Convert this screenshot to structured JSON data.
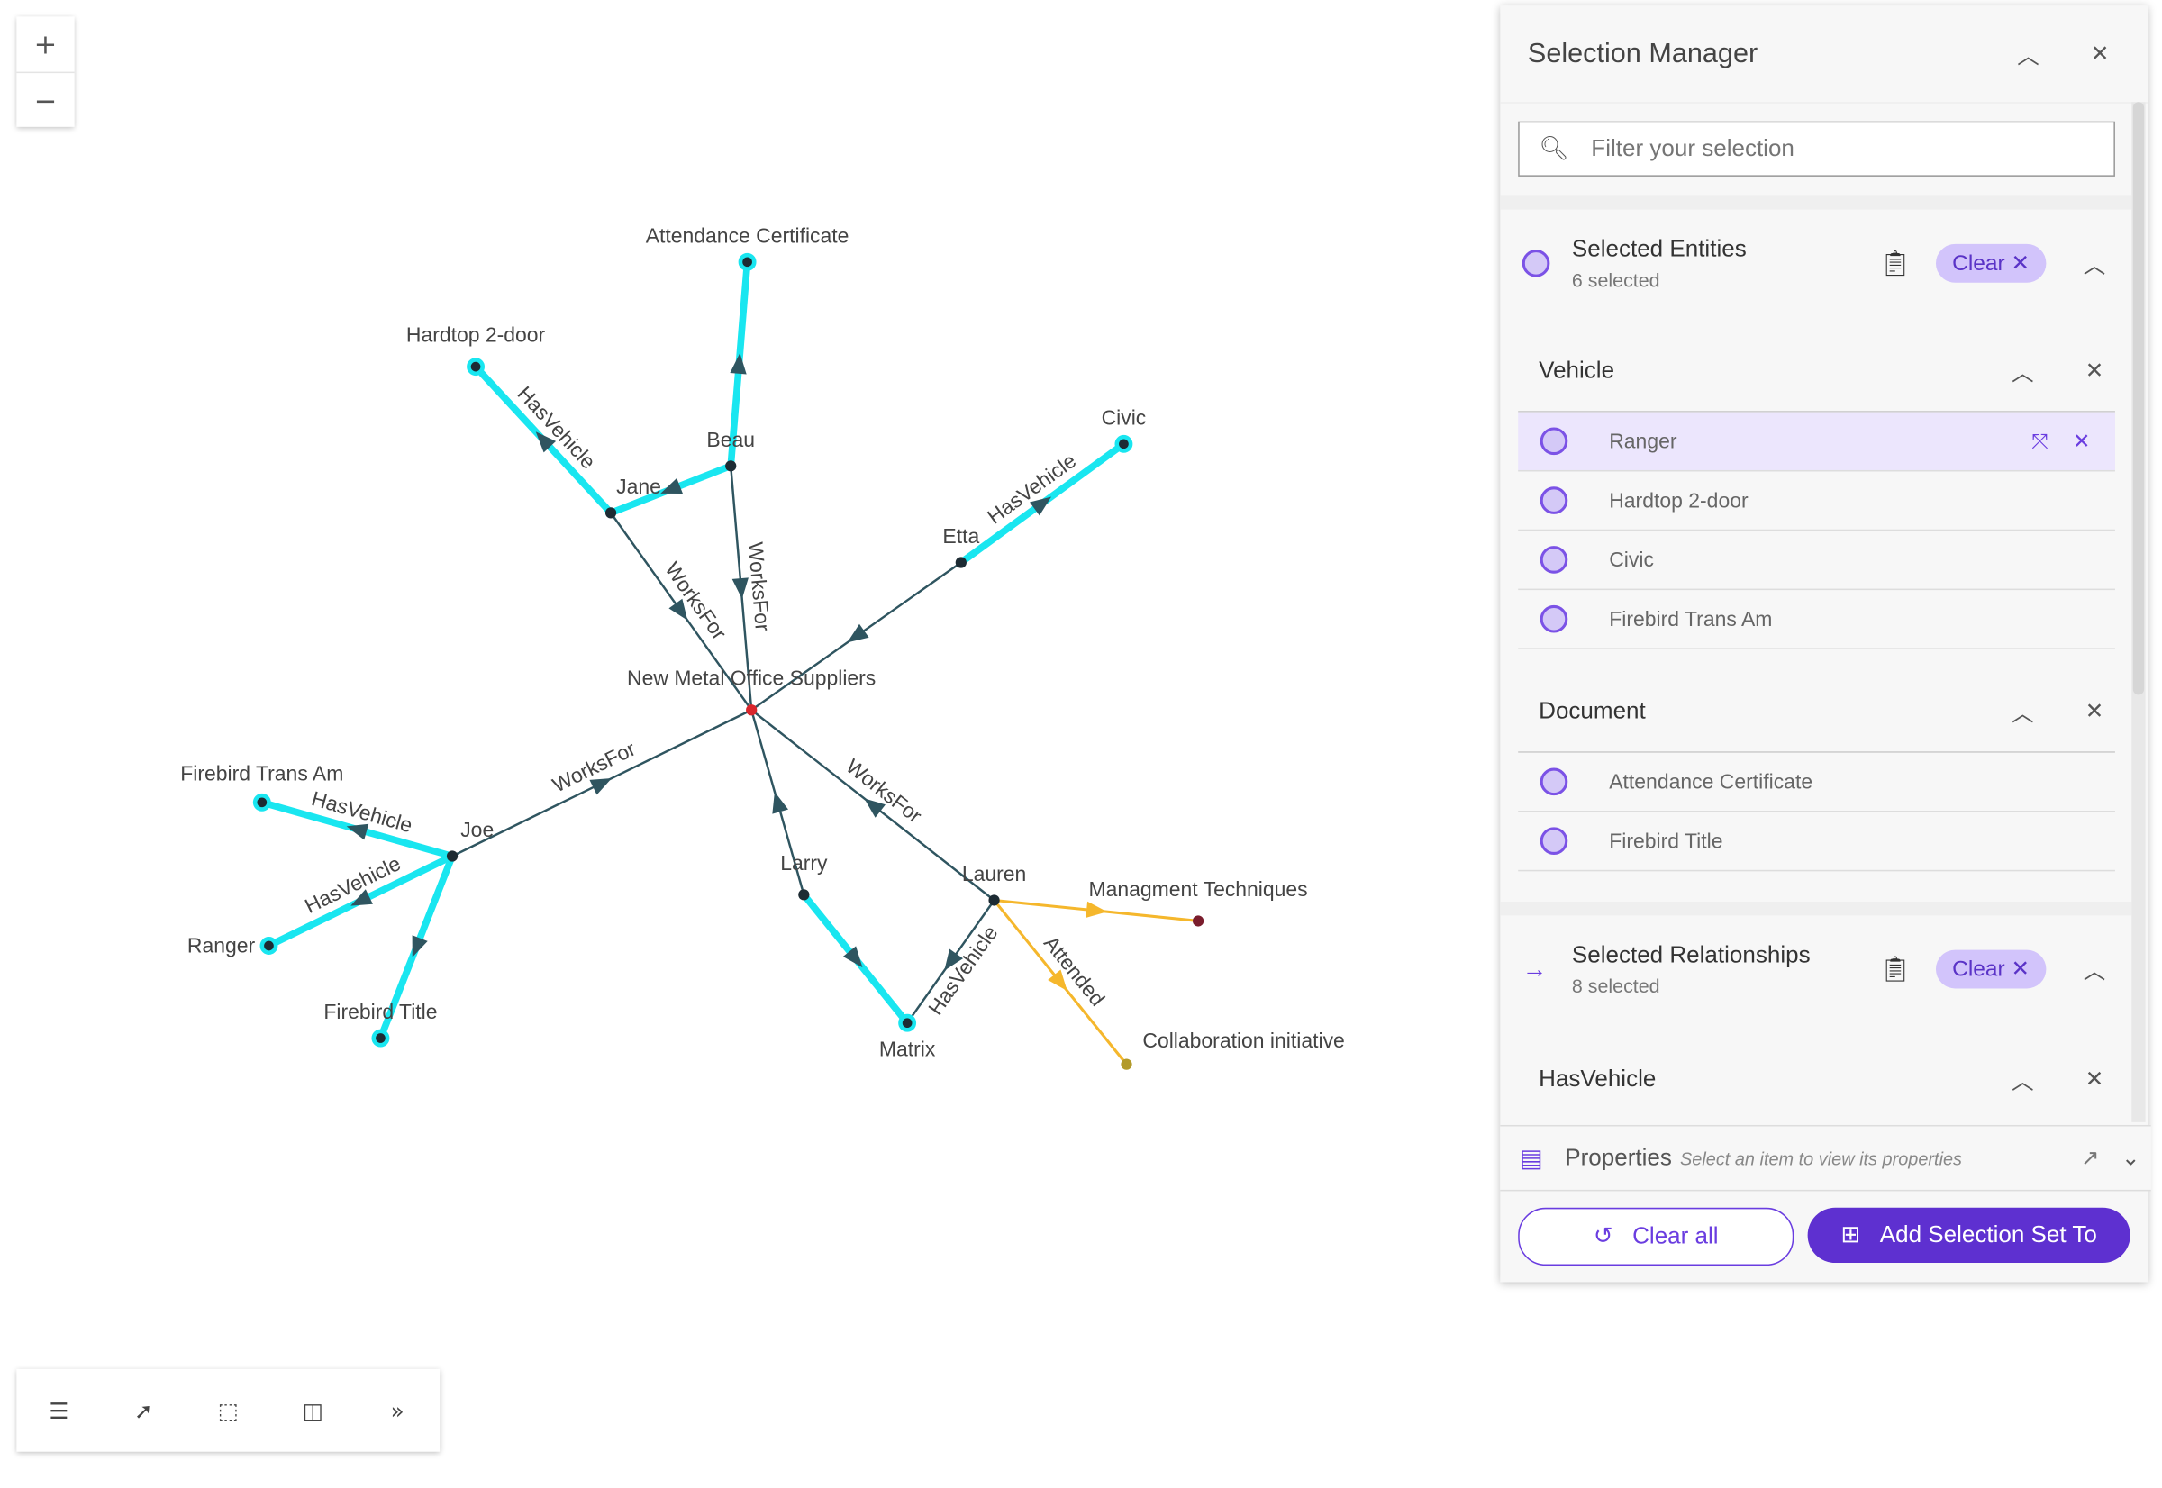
{
  "map_controls": {
    "zoom_in": "+",
    "zoom_out": "−"
  },
  "graph": {
    "colors": {
      "link": "#2f5560",
      "selected": "#19e6f0",
      "attended": "#f5b72c",
      "center_node": "#d9262c"
    },
    "nodes": [
      {
        "id": "nmos",
        "label": "New Metal Office Suppliers"
      },
      {
        "id": "beau",
        "label": "Beau"
      },
      {
        "id": "jane",
        "label": "Jane"
      },
      {
        "id": "hardtop",
        "label": "Hardtop 2-door"
      },
      {
        "id": "attcert",
        "label": "Attendance Certificate"
      },
      {
        "id": "etta",
        "label": "Etta"
      },
      {
        "id": "civic",
        "label": "Civic"
      },
      {
        "id": "joe",
        "label": "Joe"
      },
      {
        "id": "firebird",
        "label": "Firebird Trans Am"
      },
      {
        "id": "ranger",
        "label": "Ranger"
      },
      {
        "id": "fbtitle",
        "label": "Firebird Title"
      },
      {
        "id": "larry",
        "label": "Larry"
      },
      {
        "id": "matrix",
        "label": "Matrix"
      },
      {
        "id": "lauren",
        "label": "Lauren"
      },
      {
        "id": "mgmt",
        "label": "Managment Techniques"
      },
      {
        "id": "collab",
        "label": "Collaboration initiative"
      }
    ],
    "edges": [
      {
        "from": "jane",
        "to": "nmos",
        "label": "WorksFor",
        "kind": "link"
      },
      {
        "from": "beau",
        "to": "nmos",
        "label": "WorksFor",
        "kind": "link"
      },
      {
        "from": "etta",
        "to": "nmos",
        "label": "",
        "kind": "link"
      },
      {
        "from": "joe",
        "to": "nmos",
        "label": "WorksFor",
        "kind": "link"
      },
      {
        "from": "lauren",
        "to": "nmos",
        "label": "WorksFor",
        "kind": "link"
      },
      {
        "from": "larry",
        "to": "nmos",
        "label": "",
        "kind": "link"
      },
      {
        "from": "lauren",
        "to": "matrix",
        "label": "HasVehicle",
        "kind": "link"
      },
      {
        "from": "jane",
        "to": "hardtop",
        "label": "HasVehicle",
        "kind": "selected"
      },
      {
        "from": "beau",
        "to": "jane",
        "label": "",
        "kind": "selected"
      },
      {
        "from": "beau",
        "to": "attcert",
        "label": "",
        "kind": "selected"
      },
      {
        "from": "etta",
        "to": "civic",
        "label": "HasVehicle",
        "kind": "selected"
      },
      {
        "from": "joe",
        "to": "firebird",
        "label": "HasVehicle",
        "kind": "selected"
      },
      {
        "from": "joe",
        "to": "ranger",
        "label": "HasVehicle",
        "kind": "selected"
      },
      {
        "from": "joe",
        "to": "fbtitle",
        "label": "",
        "kind": "selected"
      },
      {
        "from": "larry",
        "to": "matrix",
        "label": "",
        "kind": "selected"
      },
      {
        "from": "lauren",
        "to": "mgmt",
        "label": "",
        "kind": "attended"
      },
      {
        "from": "lauren",
        "to": "collab",
        "label": "Attended",
        "kind": "attended"
      }
    ]
  },
  "toolbar": {
    "icons": [
      "list-icon",
      "pointer-icon",
      "select-box-icon",
      "lasso-select-icon",
      "expand-icon"
    ]
  },
  "panel": {
    "title": "Selection Manager",
    "search_placeholder": "Filter your selection",
    "entities": {
      "title": "Selected Entities",
      "count": "6 selected",
      "clear": "Clear"
    },
    "groups": [
      {
        "name": "Vehicle",
        "items": [
          "Ranger",
          "Hardtop 2-door",
          "Civic",
          "Firebird Trans Am"
        ]
      },
      {
        "name": "Document",
        "items": [
          "Attendance Certificate",
          "Firebird Title"
        ]
      }
    ],
    "relationships": {
      "title": "Selected Relationships",
      "count": "8 selected",
      "clear": "Clear",
      "group": "HasVehicle"
    },
    "properties": {
      "title": "Properties",
      "hint": "Select an item to view its properties"
    },
    "clear_all": "Clear all",
    "add_set": "Add Selection Set To",
    "accent": "#5e30d0"
  }
}
